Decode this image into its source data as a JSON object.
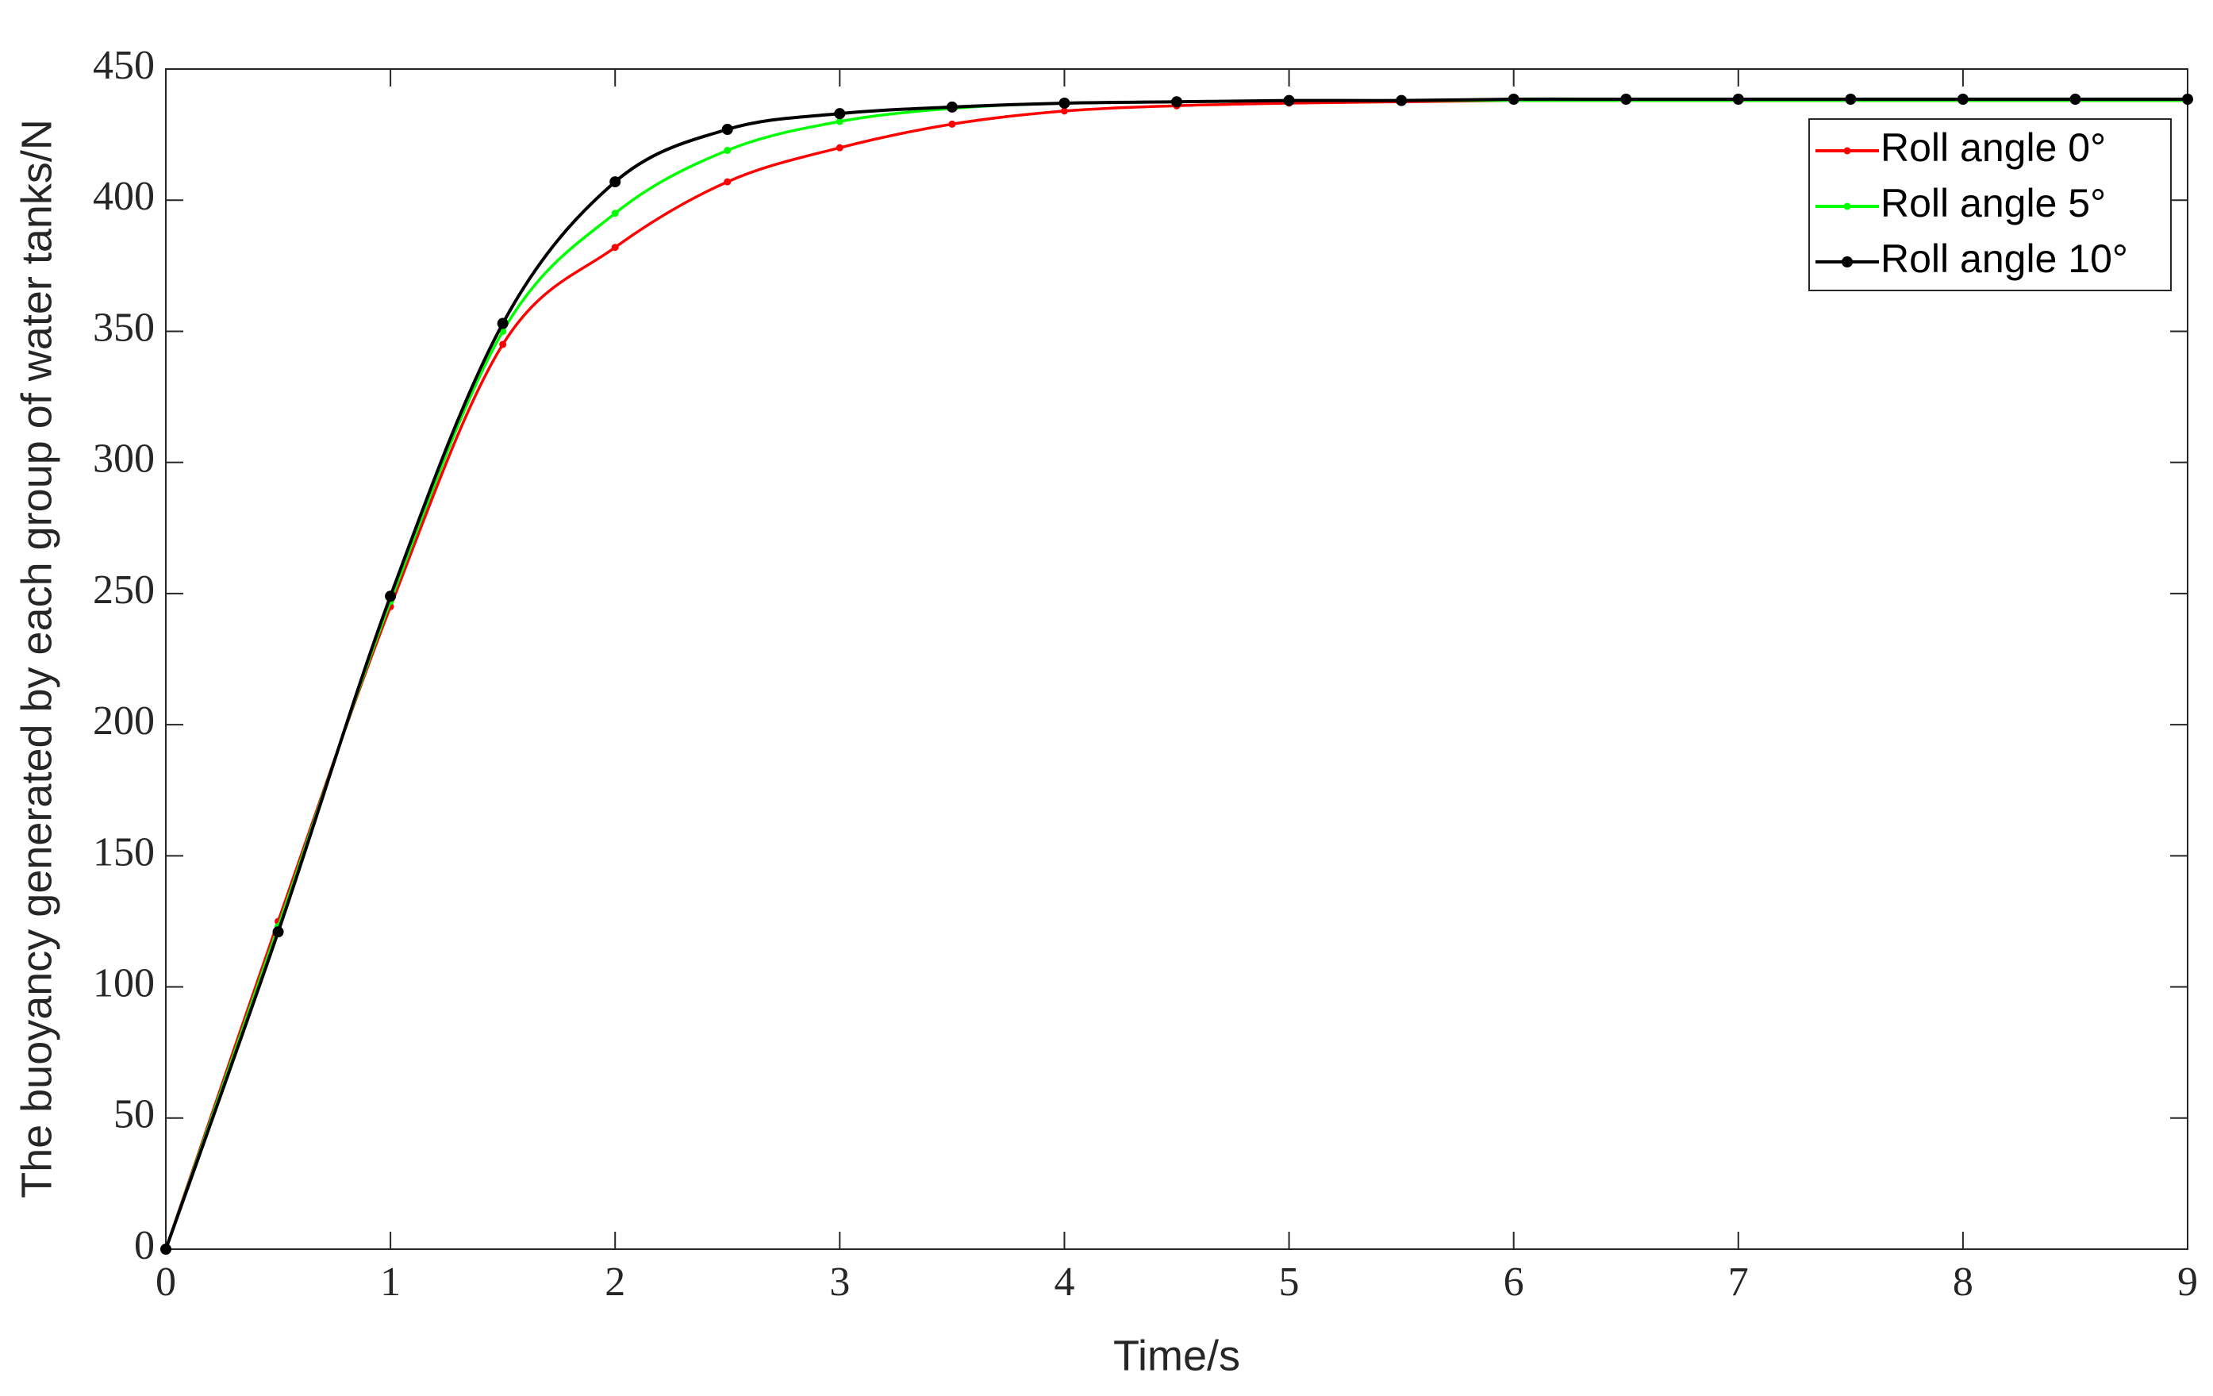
{
  "chart_data": {
    "type": "line",
    "x": [
      0,
      0.5,
      1,
      1.5,
      2,
      2.5,
      3,
      3.5,
      4,
      4.5,
      5,
      5.5,
      6,
      6.5,
      7,
      7.5,
      8,
      8.5,
      9
    ],
    "series": [
      {
        "name": "Roll angle 0°",
        "color": "#ff0000",
        "values": [
          0,
          125,
          245,
          345,
          382,
          407,
          420,
          429,
          434,
          436,
          437,
          437.5,
          438,
          438,
          438,
          438,
          438,
          438,
          438
        ]
      },
      {
        "name": "Roll angle 5°",
        "color": "#00ff00",
        "values": [
          0,
          123,
          247,
          350,
          395,
          419,
          430,
          435,
          437,
          437.5,
          438,
          438,
          438,
          438,
          438,
          438,
          438,
          438,
          438
        ]
      },
      {
        "name": "Roll angle 10°",
        "color": "#000000",
        "values": [
          0,
          121,
          249,
          353,
          407,
          427,
          433,
          435.5,
          437,
          437.5,
          438,
          438,
          438.5,
          438.5,
          438.5,
          438.5,
          438.5,
          438.5,
          438.5
        ]
      }
    ],
    "xlabel": "Time/s",
    "ylabel": "The buoyancy generated by each group of water tanks/N",
    "xlim": [
      0,
      9
    ],
    "xticks": [
      0,
      1,
      2,
      3,
      4,
      5,
      6,
      7,
      8,
      9
    ],
    "ylim": [
      0,
      450
    ],
    "yticks": [
      0,
      50,
      100,
      150,
      200,
      250,
      300,
      350,
      400,
      450
    ],
    "grid": false,
    "legend": "upper right"
  }
}
